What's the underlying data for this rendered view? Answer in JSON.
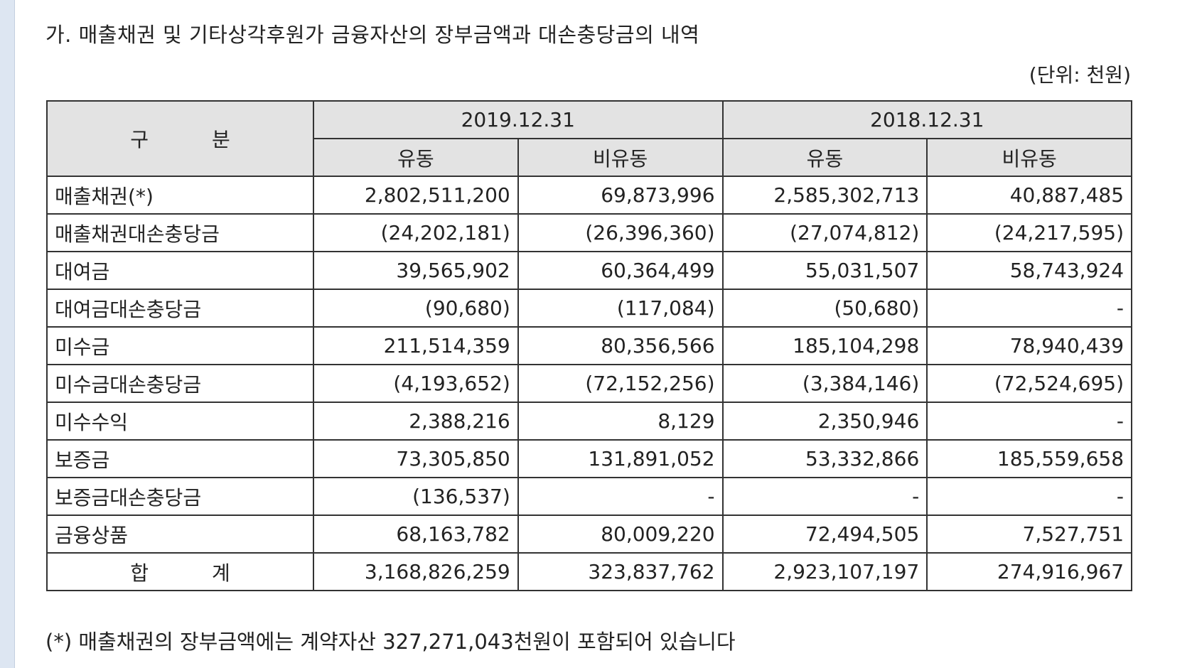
{
  "title": "가. 매출채권 및 기타상각후원가 금융자산의 장부금액과 대손충당금의 내역",
  "unit": "(단위: 천원)",
  "table": {
    "category_header": "구 분",
    "periods": [
      "2019.12.31",
      "2018.12.31"
    ],
    "sub_headers": [
      "유동",
      "비유동",
      "유동",
      "비유동"
    ],
    "rows": [
      {
        "label": "매출채권(*)",
        "values": [
          "2,802,511,200",
          "69,873,996",
          "2,585,302,713",
          "40,887,485"
        ]
      },
      {
        "label": "매출채권대손충당금",
        "values": [
          "(24,202,181)",
          "(26,396,360)",
          "(27,074,812)",
          "(24,217,595)"
        ]
      },
      {
        "label": "대여금",
        "values": [
          "39,565,902",
          "60,364,499",
          "55,031,507",
          "58,743,924"
        ]
      },
      {
        "label": "대여금대손충당금",
        "values": [
          "(90,680)",
          "(117,084)",
          "(50,680)",
          "-"
        ]
      },
      {
        "label": "미수금",
        "values": [
          "211,514,359",
          "80,356,566",
          "185,104,298",
          "78,940,439"
        ]
      },
      {
        "label": "미수금대손충당금",
        "values": [
          "(4,193,652)",
          "(72,152,256)",
          "(3,384,146)",
          "(72,524,695)"
        ]
      },
      {
        "label": "미수수익",
        "values": [
          "2,388,216",
          "8,129",
          "2,350,946",
          "-"
        ]
      },
      {
        "label": "보증금",
        "values": [
          "73,305,850",
          "131,891,052",
          "53,332,866",
          "185,559,658"
        ]
      },
      {
        "label": "보증금대손충당금",
        "values": [
          "(136,537)",
          "-",
          "-",
          "-"
        ]
      },
      {
        "label": "금융상품",
        "values": [
          "68,163,782",
          "80,009,220",
          "72,494,505",
          "7,527,751"
        ]
      }
    ],
    "total": {
      "label": "합 계",
      "values": [
        "3,168,826,259",
        "323,837,762",
        "2,923,107,197",
        "274,916,967"
      ]
    }
  },
  "footnote": "(*) 매출채권의 장부금액에는 계약자산 327,271,043천원이 포함되어 있습니다"
}
